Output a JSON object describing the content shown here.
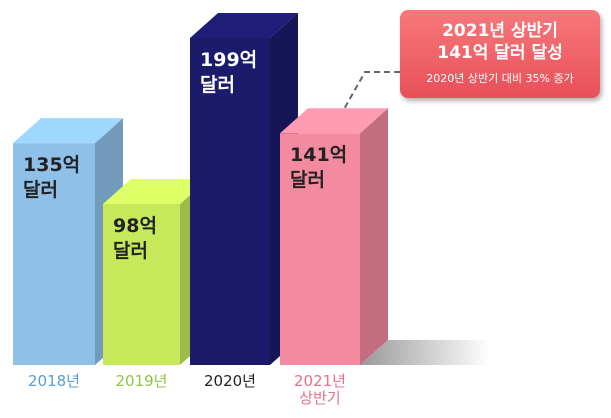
{
  "chart_data": {
    "type": "bar3d",
    "categories": [
      "2018년",
      "2019년",
      "2020년",
      "2021년 상반기"
    ],
    "values": [
      135,
      98,
      199,
      141
    ],
    "value_labels": [
      "135억 달러",
      "98억 달러",
      "199억 달러",
      "141억 달러"
    ],
    "colors": [
      "#8fc0e8",
      "#c6e85a",
      "#1c1a6b",
      "#f48aa0"
    ],
    "annotation": {
      "lines": [
        "2021년 상반기",
        "141억 달러 달성"
      ],
      "note": "2020년 상반기 대비 35% 증가"
    }
  }
}
